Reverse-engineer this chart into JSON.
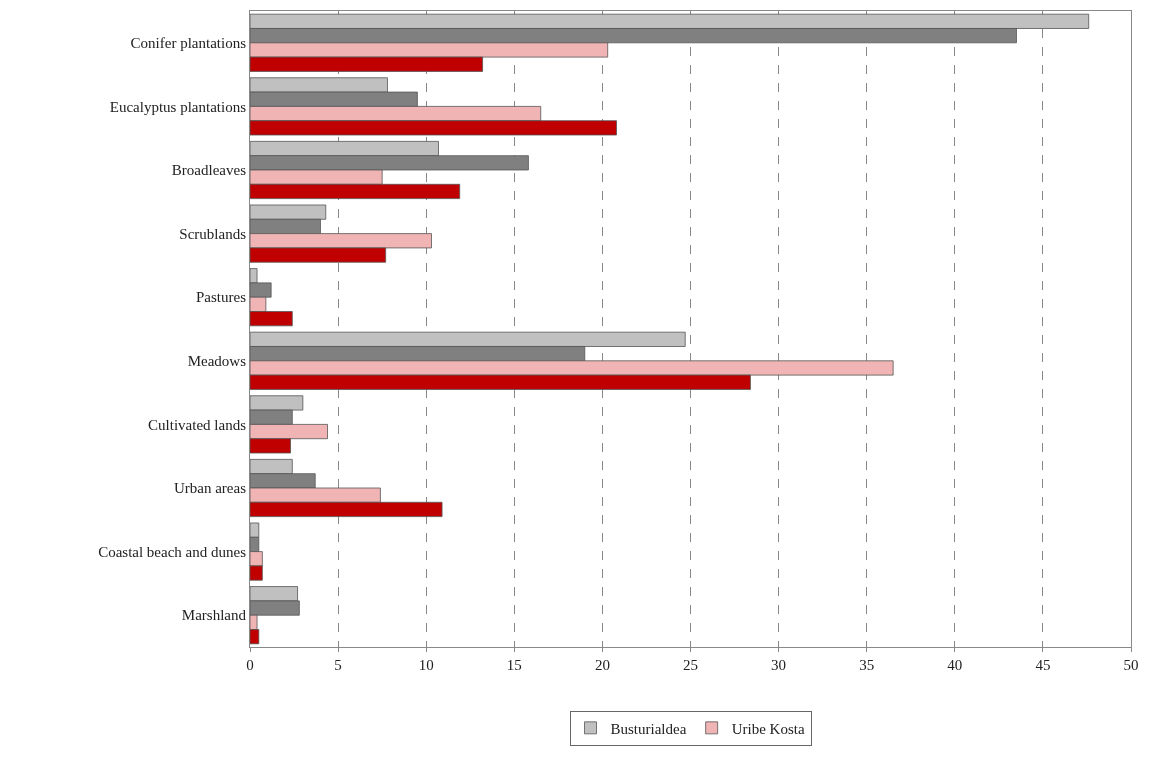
{
  "chart_data": {
    "type": "bar",
    "orientation": "horizontal",
    "categories": [
      "Conifer plantations",
      "Eucalyptus plantations",
      "Broadleaves",
      "Scrublands",
      "Pastures",
      "Meadows",
      "Cultivated lands",
      "Urban areas",
      "Coastal beach and dunes",
      "Marshland"
    ],
    "series": [
      {
        "name": "Busturialdea",
        "color": "#c0c0c0",
        "values": [
          47.6,
          7.8,
          10.7,
          4.3,
          0.4,
          24.7,
          3.0,
          2.4,
          0.5,
          2.7
        ]
      },
      {
        "color": "#808080",
        "values": [
          43.5,
          9.5,
          15.8,
          4.0,
          1.2,
          19.0,
          2.4,
          3.7,
          0.5,
          2.8
        ]
      },
      {
        "name": "Uribe Kosta",
        "color": "#f0b4b4",
        "values": [
          20.3,
          16.5,
          7.5,
          10.3,
          0.9,
          36.5,
          4.4,
          7.4,
          0.7,
          0.4
        ]
      },
      {
        "color": "#c00000",
        "values": [
          13.2,
          20.8,
          11.9,
          7.7,
          2.4,
          28.4,
          2.3,
          10.9,
          0.7,
          0.5
        ]
      }
    ],
    "xlim": [
      0,
      50
    ],
    "xticks": [
      0,
      5,
      10,
      15,
      20,
      25,
      30,
      35,
      40,
      45,
      50
    ],
    "grid": "x",
    "legend": "bottom"
  }
}
